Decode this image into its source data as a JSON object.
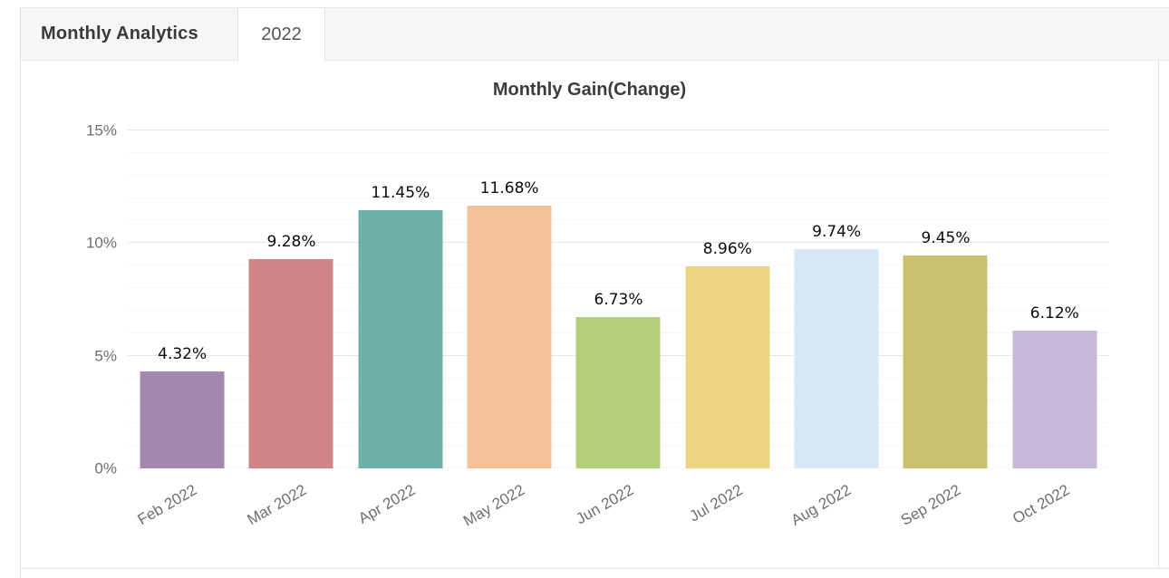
{
  "header": {
    "analytics_label": "Monthly Analytics",
    "active_tab": "2022"
  },
  "chart": {
    "title": "Monthly Gain(Change)"
  },
  "chart_data": {
    "type": "bar",
    "title": "Monthly Gain(Change)",
    "categories": [
      "Feb 2022",
      "Mar 2022",
      "Apr 2022",
      "May 2022",
      "Jun 2022",
      "Jul 2022",
      "Aug 2022",
      "Sep 2022",
      "Oct 2022"
    ],
    "values": [
      4.32,
      9.28,
      11.45,
      11.68,
      6.73,
      8.96,
      9.74,
      9.45,
      6.12
    ],
    "value_labels": [
      "4.32%",
      "9.28%",
      "11.45%",
      "11.68%",
      "6.73%",
      "8.96%",
      "9.74%",
      "9.45%",
      "6.12%"
    ],
    "bar_colors": [
      "#a588b0",
      "#d18584",
      "#6db1ab",
      "#f5c199",
      "#b2cf77",
      "#ecd482",
      "#d9e8f6",
      "#cac170",
      "#c7b8d9"
    ],
    "xlabel": "",
    "ylabel": "",
    "ylim": [
      0,
      15
    ],
    "y_major_ticks": [
      0,
      5,
      10,
      15
    ],
    "y_tick_labels": [
      "0%",
      "5%",
      "10%",
      "15%"
    ],
    "y_minor_step": 1,
    "grid": "horizontal only, minor every 1%, major every 5%",
    "legend": "none"
  },
  "colors": {
    "tab_bar_bg": "#f5f6f7",
    "card_bg": "#ffffff",
    "border": "#e2e2e2",
    "major_grid": "#e6e6e6",
    "minor_grid": "#f7f7f7",
    "title_text": "#3c3c3c",
    "axis_text": "#6e6e6e",
    "data_label_text": "#0b0b0b",
    "tab_text": "#555555"
  }
}
